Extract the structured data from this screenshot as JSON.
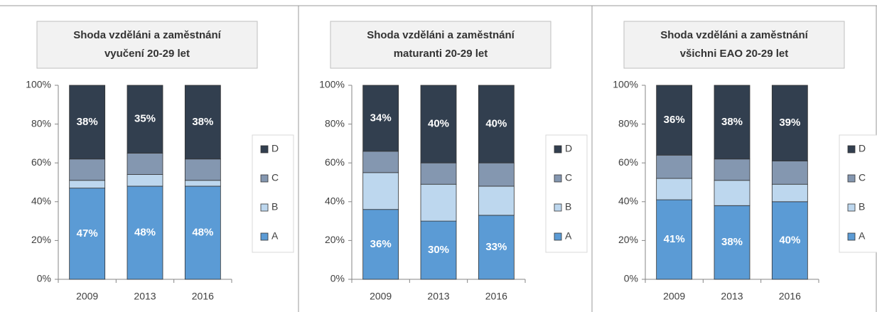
{
  "chart_data": [
    {
      "type": "bar",
      "stacked": true,
      "title": [
        "Shoda vzděláni a zaměstnání",
        "vyučení 20-29 let"
      ],
      "categories": [
        "2009",
        "2013",
        "2016"
      ],
      "series": [
        {
          "name": "A",
          "color": "#5b9bd5",
          "values": [
            47,
            48,
            48
          ],
          "value_labels": [
            "47%",
            "48%",
            "48%"
          ]
        },
        {
          "name": "B",
          "color": "#bdd7ee",
          "values": [
            4,
            6,
            3
          ]
        },
        {
          "name": "C",
          "color": "#8497b0",
          "values": [
            11,
            11,
            11
          ]
        },
        {
          "name": "D",
          "color": "#323f4f",
          "values": [
            38,
            35,
            38
          ],
          "value_labels": [
            "38%",
            "35%",
            "38%"
          ]
        }
      ],
      "ylim": [
        0,
        100
      ],
      "yticks": [
        {
          "value": 0,
          "label": "0%"
        },
        {
          "value": 20,
          "label": "20%"
        },
        {
          "value": 40,
          "label": "40%"
        },
        {
          "value": 60,
          "label": "60%"
        },
        {
          "value": 80,
          "label": "80%"
        },
        {
          "value": 100,
          "label": "100%"
        }
      ],
      "legend": "right"
    },
    {
      "type": "bar",
      "stacked": true,
      "title": [
        "Shoda vzděláni a zaměstnání",
        "maturanti 20-29 let"
      ],
      "categories": [
        "2009",
        "2013",
        "2016"
      ],
      "series": [
        {
          "name": "A",
          "color": "#5b9bd5",
          "values": [
            36,
            30,
            33
          ],
          "value_labels": [
            "36%",
            "30%",
            "33%"
          ]
        },
        {
          "name": "B",
          "color": "#bdd7ee",
          "values": [
            19,
            19,
            15
          ]
        },
        {
          "name": "C",
          "color": "#8497b0",
          "values": [
            11,
            11,
            12
          ]
        },
        {
          "name": "D",
          "color": "#323f4f",
          "values": [
            34,
            40,
            40
          ],
          "value_labels": [
            "34%",
            "40%",
            "40%"
          ]
        }
      ],
      "ylim": [
        0,
        100
      ],
      "yticks": [
        {
          "value": 0,
          "label": "0%"
        },
        {
          "value": 20,
          "label": "20%"
        },
        {
          "value": 40,
          "label": "40%"
        },
        {
          "value": 60,
          "label": "60%"
        },
        {
          "value": 80,
          "label": "80%"
        },
        {
          "value": 100,
          "label": "100%"
        }
      ],
      "legend": "right"
    },
    {
      "type": "bar",
      "stacked": true,
      "title": [
        "Shoda vzděláni a zaměstnání",
        "všichni EAO 20-29 let"
      ],
      "categories": [
        "2009",
        "2013",
        "2016"
      ],
      "series": [
        {
          "name": "A",
          "color": "#5b9bd5",
          "values": [
            41,
            38,
            40
          ],
          "value_labels": [
            "41%",
            "38%",
            "40%"
          ]
        },
        {
          "name": "B",
          "color": "#bdd7ee",
          "values": [
            11,
            13,
            9
          ]
        },
        {
          "name": "C",
          "color": "#8497b0",
          "values": [
            12,
            11,
            12
          ]
        },
        {
          "name": "D",
          "color": "#323f4f",
          "values": [
            36,
            38,
            39
          ],
          "value_labels": [
            "36%",
            "38%",
            "39%"
          ]
        }
      ],
      "ylim": [
        0,
        100
      ],
      "yticks": [
        {
          "value": 0,
          "label": "0%"
        },
        {
          "value": 20,
          "label": "20%"
        },
        {
          "value": 40,
          "label": "40%"
        },
        {
          "value": 60,
          "label": "60%"
        },
        {
          "value": 80,
          "label": "80%"
        },
        {
          "value": 100,
          "label": "100%"
        }
      ],
      "legend": "right"
    }
  ]
}
